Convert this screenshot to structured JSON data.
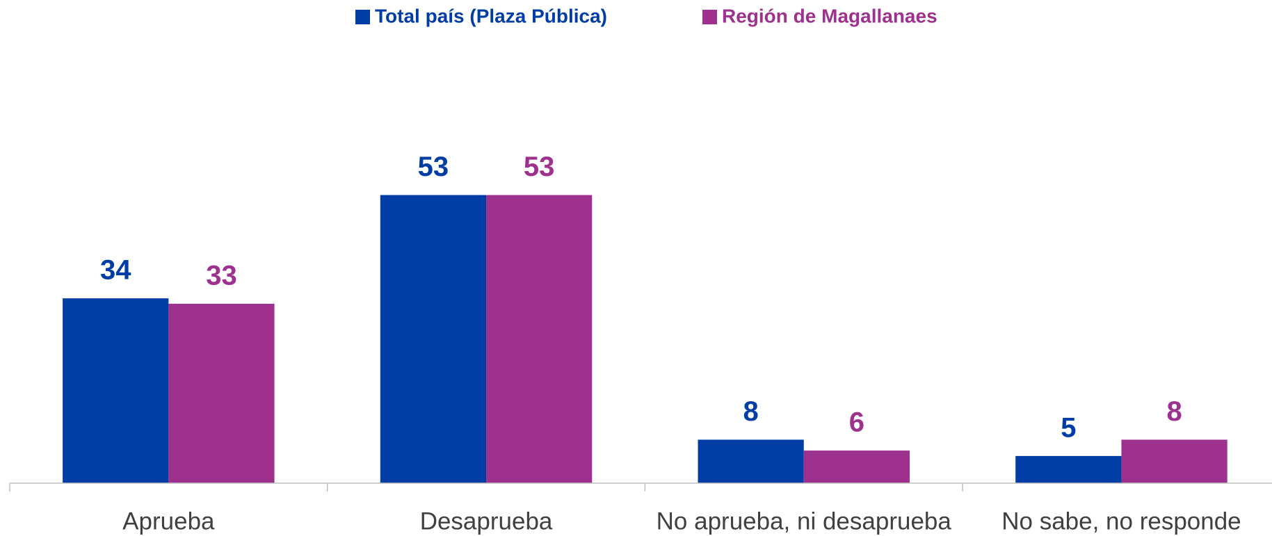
{
  "chart_data": {
    "type": "bar",
    "categories": [
      "Aprueba",
      "Desaprueba",
      "No aprueba, ni desaprueba",
      "No sabe, no responde"
    ],
    "series": [
      {
        "name": "Total país (Plaza Pública)",
        "color": "#003da5",
        "values": [
          34,
          53,
          8,
          5
        ]
      },
      {
        "name": "Región de Magallanaes",
        "color": "#9e318e",
        "values": [
          33,
          53,
          6,
          8
        ]
      }
    ],
    "legend": "top"
  }
}
